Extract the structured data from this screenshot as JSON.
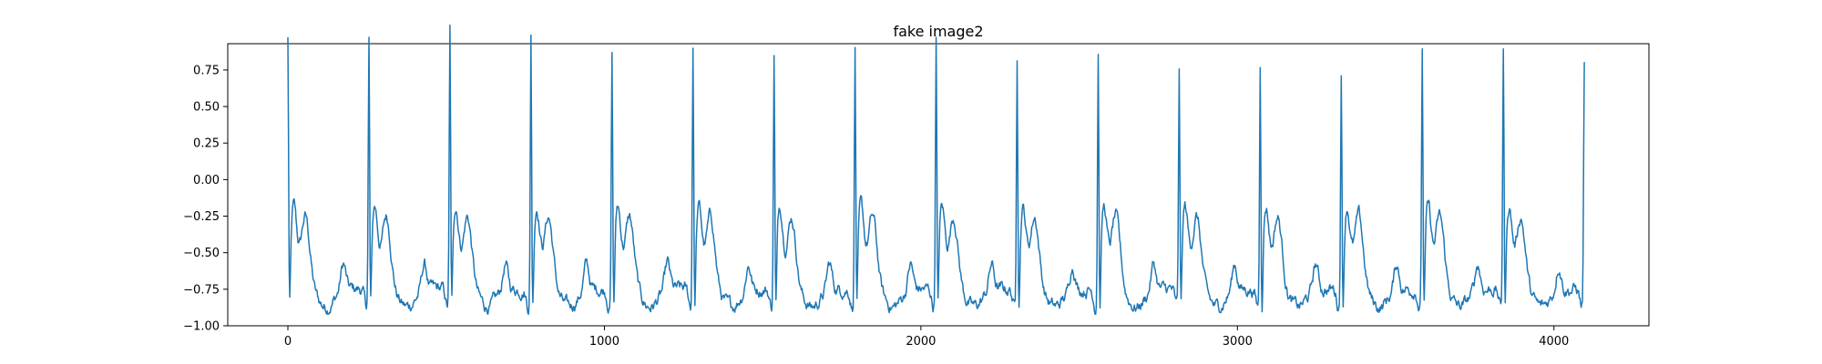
{
  "chart_data": {
    "type": "line",
    "title": "fake image2",
    "xlabel": "",
    "ylabel": "",
    "xlim": [
      -190,
      4300
    ],
    "ylim": [
      -1.0,
      0.93
    ],
    "grid": false,
    "legend": "none",
    "x_ticks": [
      0,
      1000,
      2000,
      3000,
      4000
    ],
    "x_tick_labels": [
      "0",
      "1000",
      "2000",
      "3000",
      "4000"
    ],
    "y_ticks": [
      0.75,
      0.5,
      0.25,
      0.0,
      -0.25,
      -0.5,
      -0.75,
      -1.0
    ],
    "y_tick_labels": [
      "0.75",
      "0.50",
      "0.25",
      "0.00",
      "−0.25",
      "−0.50",
      "−0.75",
      "−1.00"
    ],
    "series": [
      {
        "color": "#1f77b4",
        "x_start": 0,
        "x_end": 4096,
        "beats": [
          {
            "x": 0,
            "peak": 0.81
          },
          {
            "x": 256,
            "peak": 0.8
          },
          {
            "x": 512,
            "peak": 0.86
          },
          {
            "x": 768,
            "peak": 0.85
          },
          {
            "x": 1024,
            "peak": 0.72
          },
          {
            "x": 1280,
            "peak": 0.78
          },
          {
            "x": 1536,
            "peak": 0.71
          },
          {
            "x": 1792,
            "peak": 0.76
          },
          {
            "x": 2048,
            "peak": 0.82
          },
          {
            "x": 2304,
            "peak": 0.72
          },
          {
            "x": 2560,
            "peak": 0.73
          },
          {
            "x": 2816,
            "peak": 0.58
          },
          {
            "x": 3072,
            "peak": 0.63
          },
          {
            "x": 3328,
            "peak": 0.58
          },
          {
            "x": 3584,
            "peak": 0.73
          },
          {
            "x": 3840,
            "peak": 0.75
          },
          {
            "x": 4096,
            "peak": 0.62
          }
        ],
        "baseline": -0.75,
        "min": -0.92
      }
    ]
  }
}
